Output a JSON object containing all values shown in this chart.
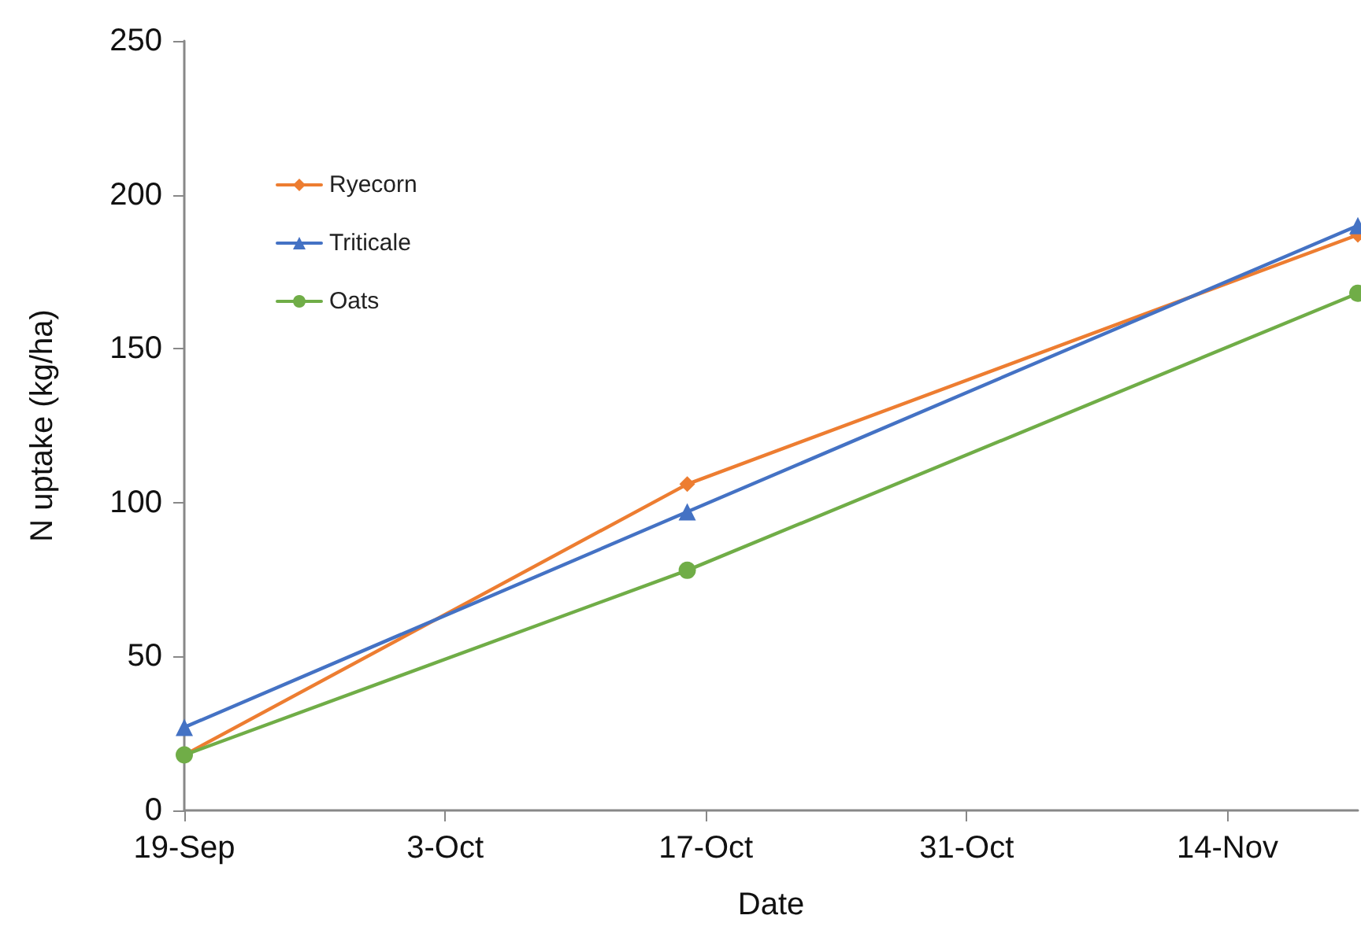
{
  "chart_data": {
    "type": "line",
    "xlabel": "Date",
    "ylabel": "N uptake (kg/ha)",
    "x": [
      "--09-19",
      "--10-16",
      "--11-21"
    ],
    "series": [
      {
        "name": "Ryecorn",
        "color": "#ed7d31",
        "marker": "diamond",
        "values": [
          18,
          106,
          187
        ]
      },
      {
        "name": "Triticale",
        "color": "#4472c4",
        "marker": "triangle",
        "values": [
          27,
          97,
          190
        ]
      },
      {
        "name": "Oats",
        "color": "#70ad47",
        "marker": "circle",
        "values": [
          18,
          78,
          168
        ]
      }
    ],
    "xlim": [
      "--09-19",
      "--11-21"
    ],
    "xticks": [
      {
        "value": "--09-19",
        "label": "19-Sep"
      },
      {
        "value": "--10-03",
        "label": "3-Oct"
      },
      {
        "value": "--10-17",
        "label": "17-Oct"
      },
      {
        "value": "--10-31",
        "label": "31-Oct"
      },
      {
        "value": "--11-14",
        "label": "14-Nov"
      }
    ],
    "ylim": [
      0,
      250
    ],
    "yticks": [
      0,
      50,
      100,
      150,
      200,
      250
    ],
    "grid": false,
    "legend": "top left",
    "line_style": "solid"
  }
}
